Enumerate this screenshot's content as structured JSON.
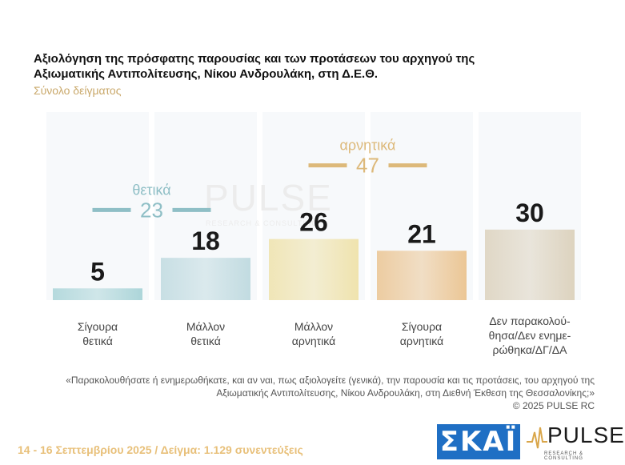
{
  "title": "Αξιολόγηση της πρόσφατης παρουσίας και των προτάσεων του αρχηγού της Αξιωματικής Αντιπολίτευσης, Νίκου Ανδρουλάκη, στη Δ.Ε.Θ.",
  "subtitle": "Σύνολο δείγματος",
  "chart_data": {
    "type": "bar",
    "categories": [
      "Σίγουρα θετικά",
      "Μάλλον θετικά",
      "Μάλλον αρνητικά",
      "Σίγουρα αρνητικά",
      "Δεν παρακολού-θησα/Δεν ενημε-ρώθηκα/ΔΓ/ΔΑ"
    ],
    "category_lines": [
      [
        "Σίγουρα",
        "θετικά"
      ],
      [
        "Μάλλον",
        "θετικά"
      ],
      [
        "Μάλλον",
        "αρνητικά"
      ],
      [
        "Σίγουρα",
        "αρνητικά"
      ],
      [
        "Δεν παρακολού-",
        "θησα/Δεν ενημε-",
        "ρώθηκα/ΔΓ/ΔΑ"
      ]
    ],
    "values": [
      5,
      18,
      26,
      21,
      30
    ],
    "value_labels": [
      "5",
      "18",
      "26",
      "21",
      "30"
    ],
    "ylim": [
      0,
      80
    ],
    "colors": [
      "#9fcfd3",
      "#b8d6dc",
      "#eedfa0",
      "#e9bd83",
      "#d8ccb4"
    ],
    "group_totals": [
      {
        "label": "θετικά",
        "value": "23",
        "color": "#8fbfc6",
        "value_at": 38
      },
      {
        "label": "αρνητικά",
        "value": "47",
        "color": "#ddb97a",
        "value_at": 57
      }
    ]
  },
  "question": "«Παρακολουθήσατε ή ενημερωθήκατε, και αν ναι, πως αξιολογείτε (γενικά), την παρουσία και τις προτάσεις, του αρχηγού της Αξιωματικής Αντιπολίτευσης, Νίκου Ανδρουλάκη, στη Διεθνή Έκθεση της Θεσσαλονίκης;»",
  "copyright": "©  2025  PULSE RC",
  "footer": "14 - 16 Σεπτεμβρίου 2025  /  Δείγμα:  1.129 συνεντεύξεις",
  "watermark": {
    "word": "PULSE",
    "tag": "RESEARCH & CONSULTING"
  },
  "logos": {
    "skai": "ΣΚΑΪ",
    "pulse": "PULSE",
    "pulse_tag": "RESEARCH & CONSULTING",
    "skai_color": "#1f6fc4"
  }
}
